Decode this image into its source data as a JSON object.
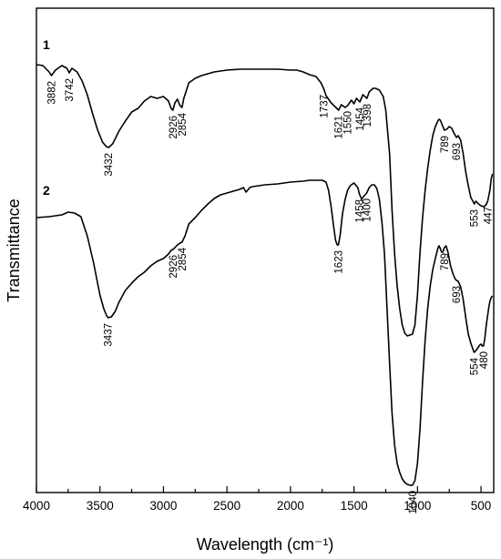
{
  "chart_data": {
    "type": "line",
    "xlabel": "Wavelength (cm⁻¹)",
    "ylabel": "Transmittance",
    "xlim": [
      4000,
      400
    ],
    "x_reversed": true,
    "yticks": false,
    "grid": false,
    "xticks": [
      4000,
      3500,
      3000,
      2500,
      2000,
      1500,
      1000,
      500
    ],
    "series": [
      {
        "name": "1",
        "points": [
          [
            4000,
            62
          ],
          [
            3950,
            63
          ],
          [
            3900,
            70
          ],
          [
            3882,
            74
          ],
          [
            3850,
            68
          ],
          [
            3800,
            63
          ],
          [
            3760,
            66
          ],
          [
            3742,
            71
          ],
          [
            3720,
            66
          ],
          [
            3680,
            70
          ],
          [
            3640,
            80
          ],
          [
            3600,
            95
          ],
          [
            3560,
            115
          ],
          [
            3520,
            133
          ],
          [
            3480,
            147
          ],
          [
            3450,
            152
          ],
          [
            3432,
            153
          ],
          [
            3400,
            149
          ],
          [
            3350,
            135
          ],
          [
            3300,
            124
          ],
          [
            3250,
            114
          ],
          [
            3200,
            110
          ],
          [
            3150,
            102
          ],
          [
            3100,
            97
          ],
          [
            3050,
            99
          ],
          [
            3000,
            97
          ],
          [
            2960,
            102
          ],
          [
            2940,
            110
          ],
          [
            2926,
            112
          ],
          [
            2910,
            104
          ],
          [
            2890,
            100
          ],
          [
            2870,
            107
          ],
          [
            2854,
            109
          ],
          [
            2840,
            99
          ],
          [
            2800,
            82
          ],
          [
            2750,
            77
          ],
          [
            2700,
            74
          ],
          [
            2600,
            70
          ],
          [
            2500,
            68
          ],
          [
            2400,
            67
          ],
          [
            2300,
            67
          ],
          [
            2200,
            67
          ],
          [
            2100,
            67
          ],
          [
            2000,
            68
          ],
          [
            1950,
            68
          ],
          [
            1900,
            70
          ],
          [
            1850,
            73
          ],
          [
            1800,
            75
          ],
          [
            1760,
            82
          ],
          [
            1737,
            89
          ],
          [
            1720,
            96
          ],
          [
            1700,
            100
          ],
          [
            1680,
            104
          ],
          [
            1650,
            108
          ],
          [
            1621,
            112
          ],
          [
            1600,
            106
          ],
          [
            1570,
            109
          ],
          [
            1550,
            107
          ],
          [
            1520,
            101
          ],
          [
            1500,
            105
          ],
          [
            1480,
            99
          ],
          [
            1454,
            103
          ],
          [
            1430,
            95
          ],
          [
            1398,
            99
          ],
          [
            1380,
            92
          ],
          [
            1350,
            88
          ],
          [
            1330,
            88
          ],
          [
            1300,
            90
          ],
          [
            1270,
            97
          ],
          [
            1250,
            112
          ],
          [
            1220,
            160
          ],
          [
            1200,
            222
          ],
          [
            1180,
            270
          ],
          [
            1160,
            305
          ],
          [
            1140,
            330
          ],
          [
            1120,
            348
          ],
          [
            1100,
            357
          ],
          [
            1080,
            360
          ],
          [
            1060,
            359
          ],
          [
            1040,
            358
          ],
          [
            1020,
            348
          ],
          [
            1000,
            315
          ],
          [
            980,
            268
          ],
          [
            960,
            230
          ],
          [
            940,
            200
          ],
          [
            920,
            176
          ],
          [
            900,
            156
          ],
          [
            880,
            140
          ],
          [
            860,
            130
          ],
          [
            840,
            124
          ],
          [
            830,
            122
          ],
          [
            820,
            123
          ],
          [
            800,
            130
          ],
          [
            789,
            134
          ],
          [
            770,
            133
          ],
          [
            750,
            130
          ],
          [
            730,
            132
          ],
          [
            710,
            138
          ],
          [
            693,
            142
          ],
          [
            680,
            140
          ],
          [
            660,
            145
          ],
          [
            640,
            160
          ],
          [
            620,
            180
          ],
          [
            600,
            195
          ],
          [
            580,
            208
          ],
          [
            560,
            213
          ],
          [
            553,
            215
          ],
          [
            540,
            212
          ],
          [
            520,
            215
          ],
          [
            500,
            217
          ],
          [
            480,
            218
          ],
          [
            460,
            216
          ],
          [
            447,
            212
          ],
          [
            430,
            200
          ],
          [
            420,
            188
          ],
          [
            410,
            182
          ]
        ]
      },
      {
        "name": "2",
        "points": [
          [
            4000,
            230
          ],
          [
            3900,
            229
          ],
          [
            3800,
            227
          ],
          [
            3750,
            224
          ],
          [
            3700,
            225
          ],
          [
            3650,
            229
          ],
          [
            3600,
            250
          ],
          [
            3550,
            280
          ],
          [
            3500,
            315
          ],
          [
            3470,
            330
          ],
          [
            3450,
            337
          ],
          [
            3437,
            340
          ],
          [
            3410,
            339
          ],
          [
            3380,
            333
          ],
          [
            3350,
            323
          ],
          [
            3300,
            310
          ],
          [
            3250,
            302
          ],
          [
            3200,
            295
          ],
          [
            3150,
            290
          ],
          [
            3100,
            283
          ],
          [
            3050,
            278
          ],
          [
            3000,
            275
          ],
          [
            2960,
            270
          ],
          [
            2940,
            266
          ],
          [
            2926,
            265
          ],
          [
            2910,
            263
          ],
          [
            2890,
            260
          ],
          [
            2870,
            258
          ],
          [
            2854,
            257
          ],
          [
            2830,
            250
          ],
          [
            2800,
            237
          ],
          [
            2750,
            230
          ],
          [
            2700,
            222
          ],
          [
            2650,
            215
          ],
          [
            2600,
            209
          ],
          [
            2550,
            205
          ],
          [
            2500,
            203
          ],
          [
            2450,
            201
          ],
          [
            2400,
            199
          ],
          [
            2370,
            197
          ],
          [
            2350,
            202
          ],
          [
            2320,
            197
          ],
          [
            2300,
            196
          ],
          [
            2200,
            194
          ],
          [
            2100,
            193
          ],
          [
            2000,
            191
          ],
          [
            1900,
            190
          ],
          [
            1850,
            189
          ],
          [
            1800,
            189
          ],
          [
            1750,
            189
          ],
          [
            1720,
            191
          ],
          [
            1700,
            200
          ],
          [
            1680,
            218
          ],
          [
            1660,
            240
          ],
          [
            1645,
            255
          ],
          [
            1632,
            260
          ],
          [
            1623,
            260
          ],
          [
            1610,
            250
          ],
          [
            1590,
            225
          ],
          [
            1570,
            210
          ],
          [
            1550,
            200
          ],
          [
            1530,
            195
          ],
          [
            1500,
            192
          ],
          [
            1470,
            197
          ],
          [
            1458,
            204
          ],
          [
            1440,
            210
          ],
          [
            1420,
            206
          ],
          [
            1400,
            203
          ],
          [
            1380,
            197
          ],
          [
            1360,
            194
          ],
          [
            1340,
            194
          ],
          [
            1320,
            198
          ],
          [
            1300,
            210
          ],
          [
            1280,
            235
          ],
          [
            1260,
            270
          ],
          [
            1240,
            330
          ],
          [
            1220,
            390
          ],
          [
            1200,
            445
          ],
          [
            1180,
            480
          ],
          [
            1160,
            500
          ],
          [
            1140,
            510
          ],
          [
            1120,
            517
          ],
          [
            1100,
            521
          ],
          [
            1080,
            523
          ],
          [
            1060,
            524
          ],
          [
            1040,
            524
          ],
          [
            1020,
            519
          ],
          [
            1000,
            500
          ],
          [
            980,
            462
          ],
          [
            960,
            410
          ],
          [
            940,
            365
          ],
          [
            920,
            330
          ],
          [
            900,
            305
          ],
          [
            880,
            287
          ],
          [
            860,
            275
          ],
          [
            840,
            264
          ],
          [
            830,
            261
          ],
          [
            820,
            264
          ],
          [
            810,
            268
          ],
          [
            800,
            268
          ],
          [
            789,
            263
          ],
          [
            775,
            261
          ],
          [
            760,
            268
          ],
          [
            740,
            283
          ],
          [
            720,
            292
          ],
          [
            705,
            297
          ],
          [
            693,
            299
          ],
          [
            680,
            300
          ],
          [
            660,
            306
          ],
          [
            640,
            320
          ],
          [
            620,
            340
          ],
          [
            600,
            358
          ],
          [
            580,
            368
          ],
          [
            560,
            376
          ],
          [
            554,
            378
          ],
          [
            540,
            376
          ],
          [
            520,
            372
          ],
          [
            510,
            370
          ],
          [
            500,
            369
          ],
          [
            490,
            371
          ],
          [
            480,
            371
          ],
          [
            470,
            363
          ],
          [
            460,
            350
          ],
          [
            450,
            340
          ],
          [
            440,
            330
          ],
          [
            430,
            322
          ],
          [
            420,
            318
          ],
          [
            410,
            316
          ]
        ]
      }
    ],
    "annotations": [
      {
        "series": "1",
        "x": 3882,
        "label": "3882",
        "side": "below"
      },
      {
        "series": "1",
        "x": 3742,
        "label": "3742",
        "side": "below"
      },
      {
        "series": "1",
        "x": 3432,
        "label": "3432",
        "side": "below"
      },
      {
        "series": "1",
        "x": 2926,
        "label": "2926",
        "side": "below"
      },
      {
        "series": "1",
        "x": 2854,
        "label": "2854",
        "side": "below"
      },
      {
        "series": "1",
        "x": 1737,
        "label": "1737",
        "side": "below"
      },
      {
        "series": "1",
        "x": 1621,
        "label": "1621",
        "side": "below"
      },
      {
        "series": "1",
        "x": 1550,
        "label": "1550",
        "side": "below"
      },
      {
        "series": "1",
        "x": 1454,
        "label": "1454",
        "side": "below"
      },
      {
        "series": "1",
        "x": 1398,
        "label": "1398",
        "side": "below"
      },
      {
        "series": "1",
        "x": 789,
        "label": "789",
        "side": "below"
      },
      {
        "series": "1",
        "x": 693,
        "label": "693",
        "side": "below"
      },
      {
        "series": "1",
        "x": 553,
        "label": "553",
        "side": "below"
      },
      {
        "series": "1",
        "x": 447,
        "label": "447",
        "side": "below"
      },
      {
        "series": "2",
        "x": 3437,
        "label": "3437",
        "side": "below"
      },
      {
        "series": "2",
        "x": 2926,
        "label": "2926",
        "side": "below"
      },
      {
        "series": "2",
        "x": 2854,
        "label": "2854",
        "side": "below"
      },
      {
        "series": "2",
        "x": 1623,
        "label": "1623",
        "side": "below"
      },
      {
        "series": "2",
        "x": 1458,
        "label": "1458",
        "side": "below"
      },
      {
        "series": "2",
        "x": 1400,
        "label": "1400",
        "side": "below"
      },
      {
        "series": "2",
        "x": 1040,
        "label": "1040",
        "side": "below"
      },
      {
        "series": "2",
        "x": 789,
        "label": "789",
        "side": "below"
      },
      {
        "series": "2",
        "x": 693,
        "label": "693",
        "side": "below"
      },
      {
        "series": "2",
        "x": 554,
        "label": "554",
        "side": "below"
      },
      {
        "series": "2",
        "x": 480,
        "label": "480",
        "side": "below"
      }
    ]
  }
}
